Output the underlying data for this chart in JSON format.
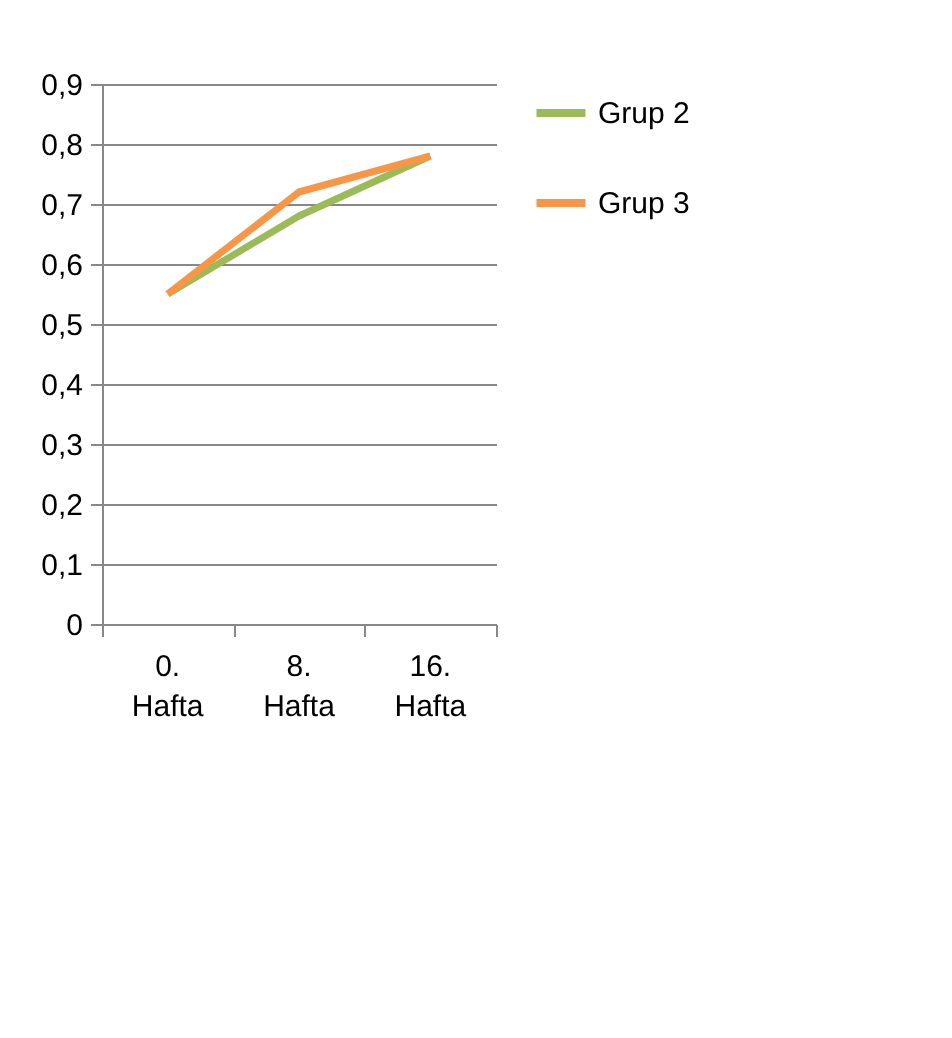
{
  "chart_data": {
    "type": "line",
    "categories": [
      "0. Hafta",
      "8. Hafta",
      "16. Hafta"
    ],
    "series": [
      {
        "name": "Grup 2",
        "color": "#9bbb59",
        "values": [
          0.55,
          0.68,
          0.78
        ]
      },
      {
        "name": "Grup 3",
        "color": "#f79646",
        "values": [
          0.55,
          0.72,
          0.78
        ]
      }
    ],
    "ylim": [
      0,
      0.9
    ],
    "yticks": [
      {
        "value": 0,
        "label": "0"
      },
      {
        "value": 0.1,
        "label": "0,1"
      },
      {
        "value": 0.2,
        "label": "0,2"
      },
      {
        "value": 0.3,
        "label": "0,3"
      },
      {
        "value": 0.4,
        "label": "0,4"
      },
      {
        "value": 0.5,
        "label": "0,5"
      },
      {
        "value": 0.6,
        "label": "0,6"
      },
      {
        "value": 0.7,
        "label": "0,7"
      },
      {
        "value": 0.8,
        "label": "0,8"
      },
      {
        "value": 0.9,
        "label": "0,9"
      }
    ],
    "grid": "y",
    "legend": "right",
    "marker": "none",
    "line_style": "solid"
  }
}
